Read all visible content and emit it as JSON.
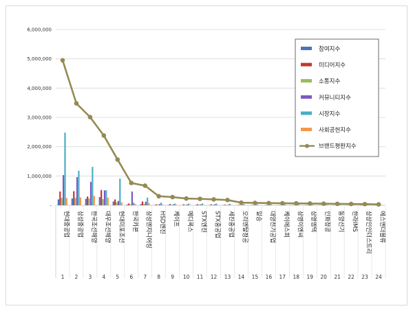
{
  "chart_data": {
    "type": "bar",
    "title": "",
    "xlabel": "",
    "ylabel": "",
    "ylim": [
      0,
      6000000
    ],
    "yticks": [
      0,
      1000000,
      2000000,
      3000000,
      4000000,
      5000000,
      6000000
    ],
    "ytick_labels": [
      "-",
      "1,000,000",
      "2,000,000",
      "3,000,000",
      "4,000,000",
      "5,000,000",
      "6,000,000"
    ],
    "grid": true,
    "legend_position": "top-right",
    "categories": [
      "현대중공업",
      "삼성중공업",
      "한국조선해양",
      "대우조선해양",
      "현대미포조선",
      "한국카본",
      "삼성엔지니어링",
      "HSD엔진",
      "케이프",
      "메디콕스",
      "STX엔진",
      "STX중공업",
      "세진중공업",
      "오리엔탈정공",
      "일승",
      "대양전기공업",
      "케이에스피",
      "삼영이엔씨",
      "삼영엠텍",
      "인화정공",
      "동양선기",
      "한라IMS",
      "상상인인더스트리",
      "에스엔더블류"
    ],
    "category_numbers": [
      "1",
      "2",
      "3",
      "4",
      "5",
      "6",
      "7",
      "8",
      "9",
      "10",
      "11",
      "12",
      "13",
      "14",
      "15",
      "16",
      "17",
      "18",
      "19",
      "20",
      "21",
      "22",
      "23",
      "24"
    ],
    "series": [
      {
        "name": "참여지수",
        "type": "bar",
        "color": "#4472c4",
        "values": [
          200000,
          230000,
          220000,
          280000,
          130000,
          25000,
          40000,
          10000,
          12000,
          8000,
          10000,
          8000,
          6000,
          6000,
          3000,
          3000,
          3000,
          3000,
          2000,
          2000,
          2000,
          2000,
          1500,
          1500
        ]
      },
      {
        "name": "미디어지수",
        "type": "bar",
        "color": "#c0392b",
        "values": [
          470000,
          480000,
          300000,
          520000,
          200000,
          60000,
          130000,
          30000,
          40000,
          30000,
          35000,
          30000,
          20000,
          15000,
          10000,
          8000,
          8000,
          8000,
          6000,
          6000,
          5000,
          5000,
          4000,
          4000
        ]
      },
      {
        "name": "소통지수",
        "type": "bar",
        "color": "#9bbb59",
        "values": [
          250000,
          250000,
          230000,
          210000,
          100000,
          30000,
          50000,
          20000,
          20000,
          15000,
          20000,
          15000,
          10000,
          8000,
          5000,
          5000,
          5000,
          5000,
          4000,
          4000,
          3000,
          3000,
          3000,
          2500
        ]
      },
      {
        "name": "커뮤니티지수",
        "type": "bar",
        "color": "#7e57c2",
        "values": [
          1030000,
          960000,
          800000,
          510000,
          150000,
          470000,
          120000,
          40000,
          30000,
          25000,
          30000,
          30000,
          20000,
          10000,
          8000,
          8000,
          8000,
          8000,
          6000,
          6000,
          5000,
          5000,
          4000,
          4000
        ]
      },
      {
        "name": "시장지수",
        "type": "bar",
        "color": "#4bacc6",
        "values": [
          2480000,
          1180000,
          1310000,
          510000,
          910000,
          90000,
          260000,
          90000,
          60000,
          60000,
          60000,
          60000,
          50000,
          40000,
          30000,
          30000,
          30000,
          30000,
          25000,
          25000,
          20000,
          20000,
          20000,
          15000
        ]
      },
      {
        "name": "사회공헌지수",
        "type": "bar",
        "color": "#f79646",
        "values": [
          250000,
          270000,
          320000,
          260000,
          100000,
          40000,
          70000,
          20000,
          20000,
          15000,
          15000,
          15000,
          10000,
          8000,
          5000,
          5000,
          5000,
          5000,
          4000,
          4000,
          3000,
          3000,
          3000,
          2500
        ]
      },
      {
        "name": "브랜드평판지수",
        "type": "line",
        "color": "#948a54",
        "values": [
          4950000,
          3480000,
          3010000,
          2380000,
          1560000,
          760000,
          670000,
          310000,
          280000,
          230000,
          220000,
          200000,
          180000,
          90000,
          80000,
          75000,
          70000,
          65000,
          60000,
          55000,
          50000,
          45000,
          40000,
          30000
        ]
      }
    ]
  }
}
